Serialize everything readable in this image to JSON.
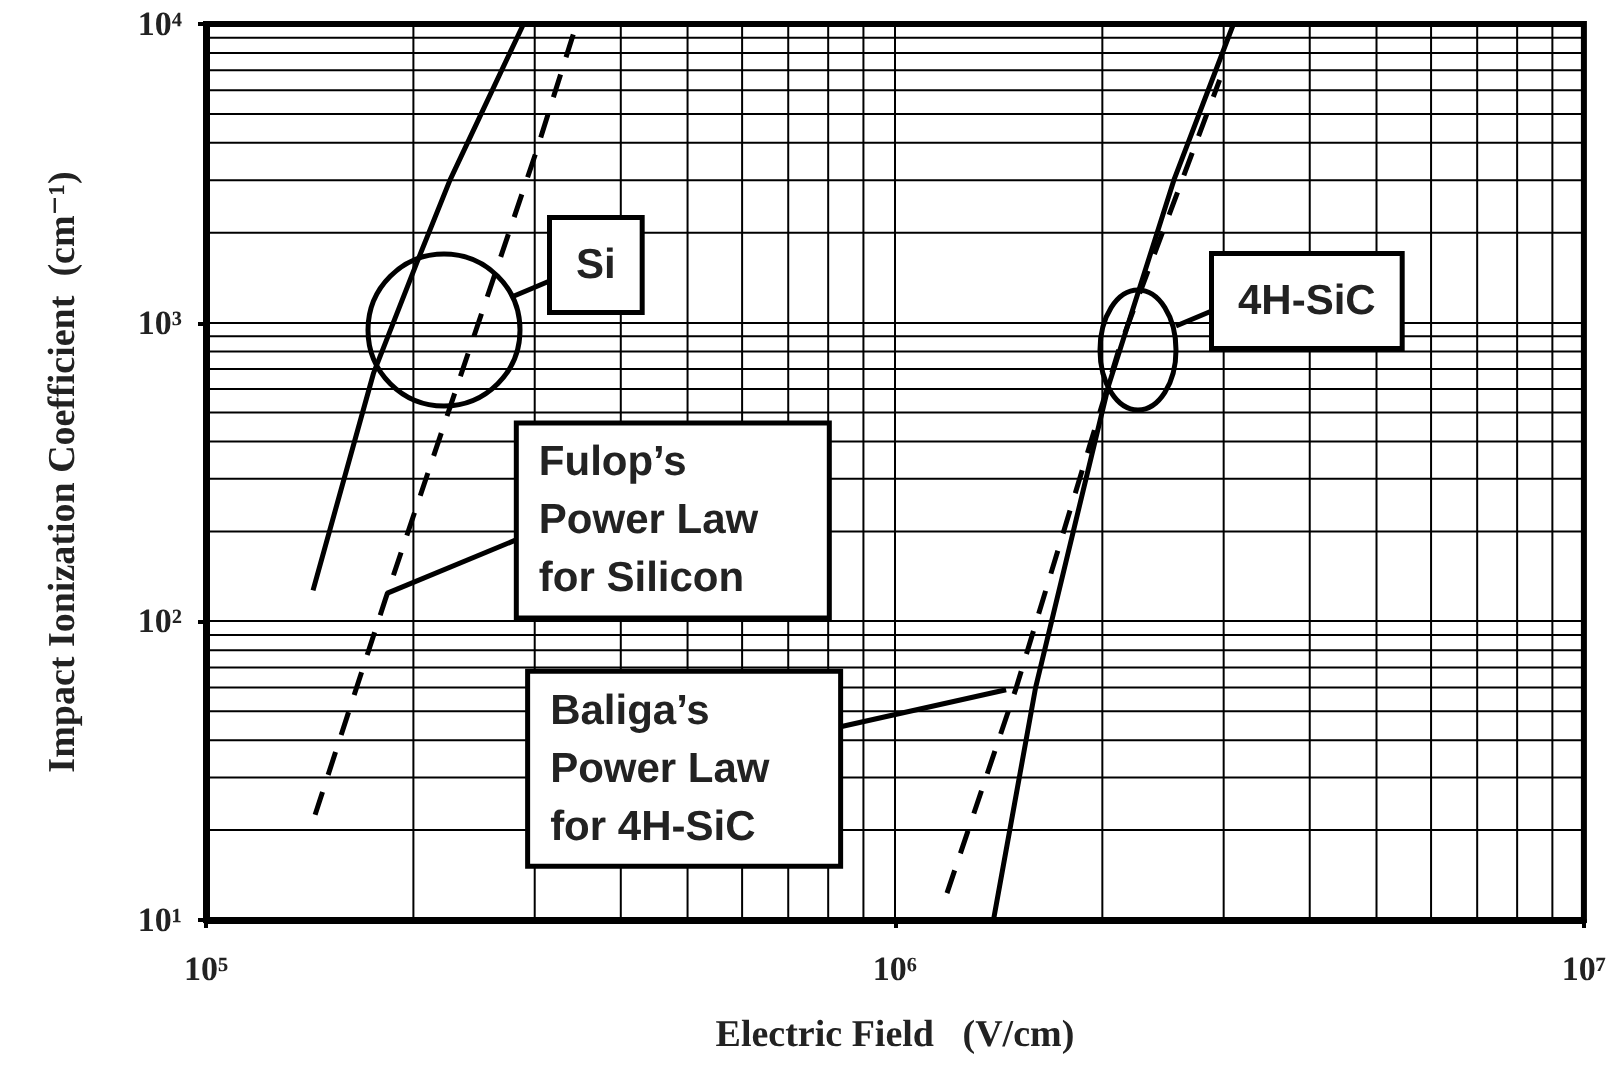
{
  "chart_data": {
    "type": "line",
    "xlabel": "Electric Field   (V/cm)",
    "ylabel": "Impact Ionization Coefficient  (cm⁻¹)",
    "log": "xy",
    "xlim": [
      100000,
      10000000
    ],
    "ylim": [
      10,
      10000
    ],
    "xticks": [
      {
        "value": 100000,
        "label": "10⁵"
      },
      {
        "value": 1000000,
        "label": "10⁶"
      },
      {
        "value": 10000000,
        "label": "10⁷"
      }
    ],
    "yticks": [
      {
        "value": 10,
        "label": "10¹"
      },
      {
        "value": 100,
        "label": "10²"
      },
      {
        "value": 1000,
        "label": "10³"
      },
      {
        "value": 10000,
        "label": "10⁴"
      }
    ],
    "grid": true,
    "marker": "none",
    "series": [
      {
        "color": "#000000",
        "line_style": "solid",
        "x": [
          143000,
          175000,
          203000,
          226000,
          289000
        ],
        "values": [
          127,
          676,
          1620,
          3000,
          10000
        ]
      },
      {
        "color": "#000000",
        "line_style": "dashed",
        "x": [
          144000,
          182000,
          242000,
          301000,
          345000
        ],
        "values": [
          22.5,
          118,
          832,
          3690,
          10000
        ]
      },
      {
        "color": "#000000",
        "line_style": "solid",
        "x": [
          1390000,
          1600000,
          2040000,
          2540000,
          3100000
        ],
        "values": [
          10,
          60,
          611,
          3000,
          10000
        ]
      },
      {
        "color": "#000000",
        "line_style": "dashed",
        "x": [
          1190000,
          1500000,
          2120000,
          2960000
        ],
        "values": [
          12.3,
          60,
          832,
          6500
        ]
      }
    ],
    "annotations": [
      "Si",
      "4H-SiC",
      {
        "text": "Fulop’s Power Law for Silicon",
        "x": 183000,
        "y": 124
      },
      {
        "text": "Baliga’s Power Law for 4H-SiC",
        "x": 1450000,
        "y": 59
      }
    ]
  }
}
